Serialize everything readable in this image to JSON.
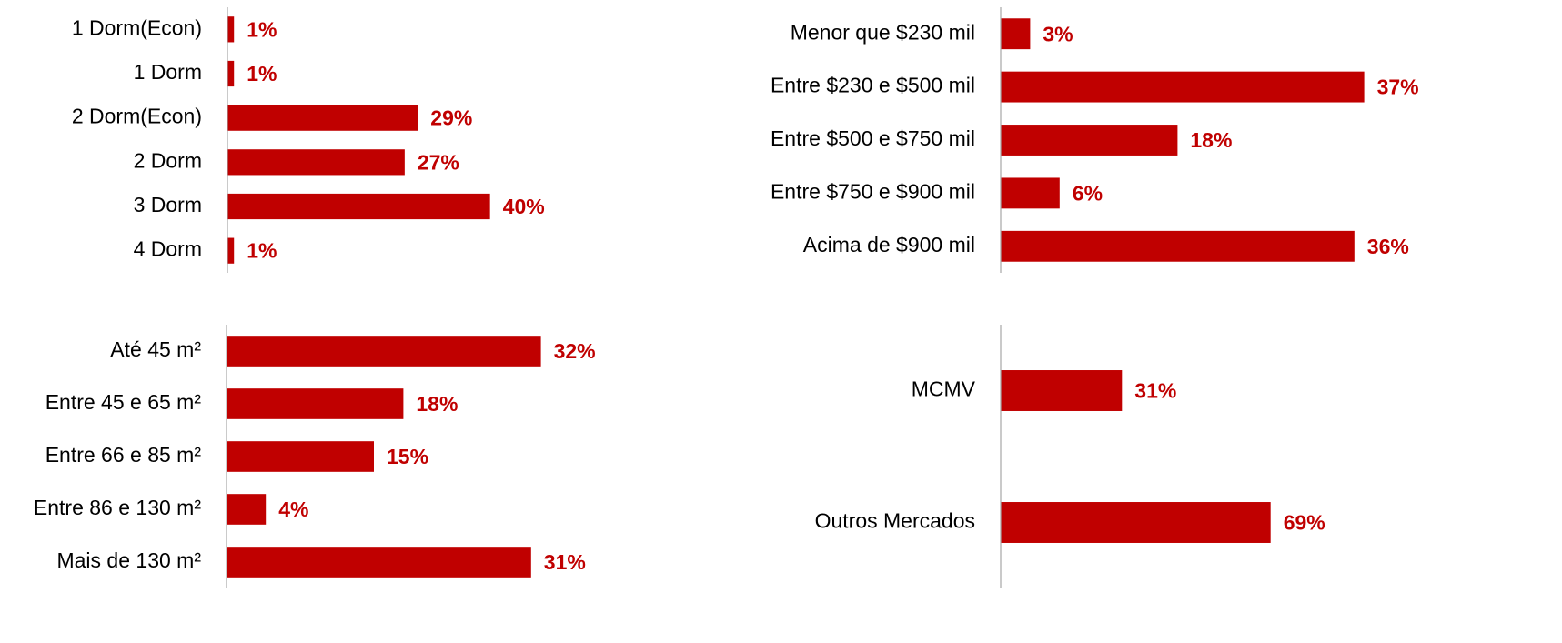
{
  "chart_data": [
    {
      "type": "bar",
      "color": "#c00000",
      "xlim": [
        0,
        60
      ],
      "categories": [
        "1 Dorm(Econ)",
        "1 Dorm",
        "2 Dorm(Econ)",
        "2 Dorm",
        "3 Dorm",
        "4 Dorm"
      ],
      "values": [
        1,
        1,
        29,
        27,
        40,
        1
      ],
      "value_labels": [
        "1%",
        "1%",
        "29%",
        "27%",
        "40%",
        "1%"
      ]
    },
    {
      "type": "bar",
      "color": "#c00000",
      "xlim": [
        0,
        40
      ],
      "categories": [
        "Menor que $230 mil",
        "Entre $230 e $500 mil",
        "Entre $500 e $750 mil",
        "Entre $750 e $900 mil",
        "Acima de $900 mil"
      ],
      "values": [
        3,
        37,
        18,
        6,
        36
      ],
      "value_labels": [
        "3%",
        "37%",
        "18%",
        "6%",
        "36%"
      ]
    },
    {
      "type": "bar",
      "color": "#c00000",
      "xlim": [
        0,
        40
      ],
      "categories": [
        "Até 45 m²",
        "Entre 45 e 65 m²",
        "Entre 66 e 85 m²",
        "Entre 86 e 130 m²",
        "Mais de 130 m²"
      ],
      "values": [
        32,
        18,
        15,
        4,
        31
      ],
      "value_labels": [
        "32%",
        "18%",
        "15%",
        "4%",
        "31%"
      ]
    },
    {
      "type": "bar",
      "color": "#c00000",
      "xlim": [
        0,
        100
      ],
      "categories": [
        "MCMV",
        "Outros Mercados"
      ],
      "values": [
        31,
        69
      ],
      "value_labels": [
        "31%",
        "69%"
      ]
    }
  ]
}
